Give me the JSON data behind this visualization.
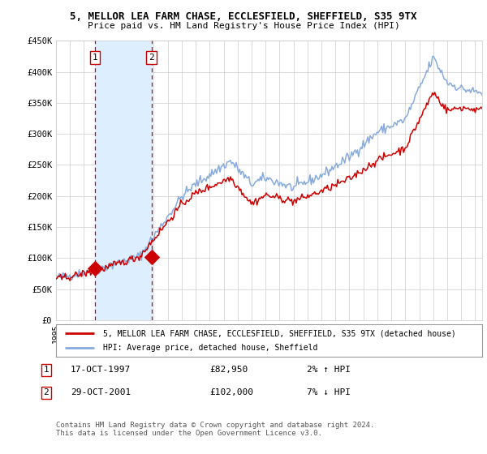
{
  "title": "5, MELLOR LEA FARM CHASE, ECCLESFIELD, SHEFFIELD, S35 9TX",
  "subtitle": "Price paid vs. HM Land Registry's House Price Index (HPI)",
  "legend_line1": "5, MELLOR LEA FARM CHASE, ECCLESFIELD, SHEFFIELD, S35 9TX (detached house)",
  "legend_line2": "HPI: Average price, detached house, Sheffield",
  "footnote": "Contains HM Land Registry data © Crown copyright and database right 2024.\nThis data is licensed under the Open Government Licence v3.0.",
  "sale1_date_year": 1997.8,
  "sale1_price": 82950,
  "sale1_label": "17-OCT-1997",
  "sale1_amount": "£82,950",
  "sale1_hpi": "2% ↑ HPI",
  "sale2_date_year": 2001.83,
  "sale2_price": 102000,
  "sale2_label": "29-OCT-2001",
  "sale2_amount": "£102,000",
  "sale2_hpi": "7% ↓ HPI",
  "hpi_color": "#88aadd",
  "sale_color": "#cc0000",
  "shade_color": "#ddeeff",
  "grid_color": "#cccccc",
  "background_color": "#ffffff",
  "ylim": [
    0,
    450000
  ],
  "yticks": [
    0,
    50000,
    100000,
    150000,
    200000,
    250000,
    300000,
    350000,
    400000,
    450000
  ],
  "ytick_labels": [
    "£0",
    "£50K",
    "£100K",
    "£150K",
    "£200K",
    "£250K",
    "£300K",
    "£350K",
    "£400K",
    "£450K"
  ],
  "xlim_start": 1995.0,
  "xlim_end": 2025.5
}
